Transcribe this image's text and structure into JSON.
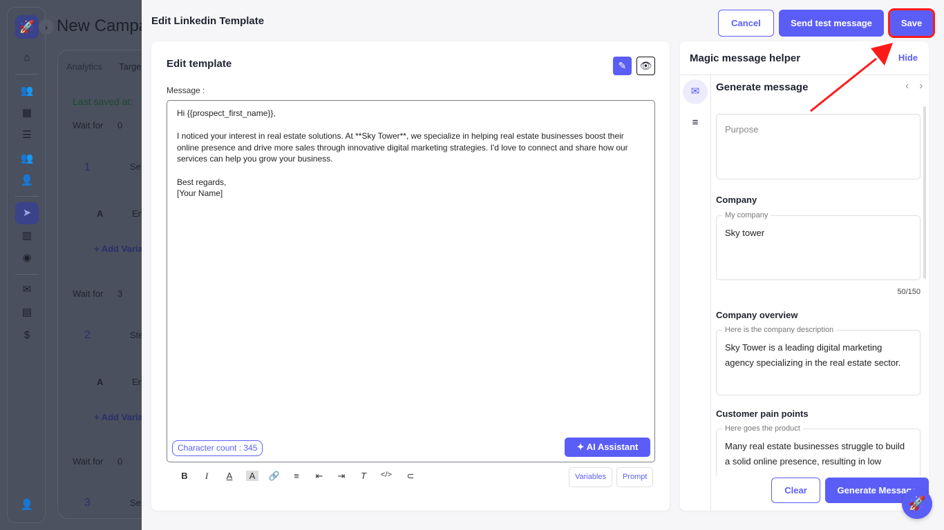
{
  "background": {
    "title": "New Campa",
    "tabs": [
      "Analytics",
      "Targe"
    ],
    "last_saved": "Last saved at:",
    "wait_label": "Wait for",
    "waits": [
      "0",
      "3",
      "0"
    ],
    "steps": [
      "1",
      "2",
      "3"
    ],
    "step_selects": [
      "Se",
      "Ste",
      "Se"
    ],
    "variant_letter": "A",
    "variant_text": "En",
    "add_variant": "+ Add Varian"
  },
  "modal": {
    "title": "Edit Linkedin Template",
    "cancel": "Cancel",
    "send_test": "Send test message",
    "save": "Save",
    "editor": {
      "title": "Edit template",
      "message_label": "Message :",
      "message_lines": [
        "Hi {{prospect_first_name}},",
        "",
        "I noticed your interest in real estate solutions. At **Sky Tower**, we specialize in helping real estate businesses boost their online presence and drive more sales through innovative digital marketing strategies. I'd love to connect and share how our services can help you grow your business.",
        "",
        "Best regards,",
        "[Your Name]"
      ],
      "char_count": "Character count : 345",
      "ai_assistant": "AI Assistant",
      "variables": "Variables",
      "prompt": "Prompt"
    },
    "helper": {
      "title": "Magic message helper",
      "hide": "Hide",
      "section": "Generate message",
      "purpose_placeholder": "Purpose",
      "company_label": "Company",
      "company_legend": "My company",
      "company_value": "Sky tower",
      "company_counter": "50/150",
      "overview_label": "Company overview",
      "overview_legend": "Here is the company description",
      "overview_value": "Sky Tower is a leading digital marketing agency specializing in the real estate sector.",
      "pain_label": "Customer pain points",
      "pain_legend": "Here goes the product",
      "pain_value": "Many real estate businesses struggle to build a solid online presence, resulting in low",
      "clear": "Clear",
      "generate": "Generate Message"
    }
  },
  "colors": {
    "accent": "#5b5ef6",
    "highlight": "#ff1a1a",
    "overlay": "#4c5260"
  }
}
